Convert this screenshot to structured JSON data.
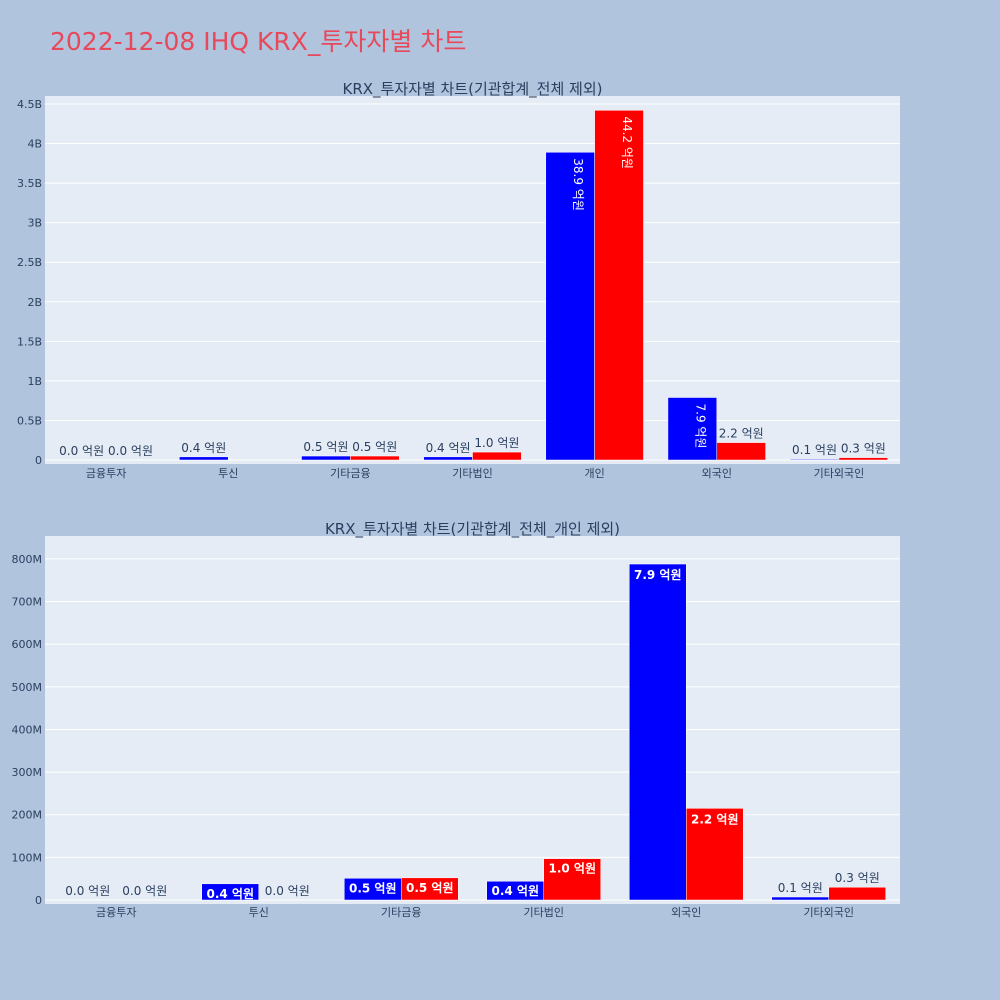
{
  "header": {
    "title": "2022-12-08 IHQ KRX_투자자별 차트"
  },
  "colors": {
    "buy": "#0000ff",
    "sell": "#ff0000",
    "plot_bg": "#e5ecf6",
    "page_bg": "#b0c4de",
    "title": "#e8495a"
  },
  "chart_data": [
    {
      "type": "bar",
      "title": "KRX_투자자별 차트(기관합계_전체 제외)",
      "categories": [
        "금융투자",
        "투신",
        "기타금융",
        "기타법인",
        "개인",
        "외국인",
        "기타외국인"
      ],
      "series": [
        {
          "values": [
            0,
            40000000,
            50000000,
            40000000,
            3890000000,
            790000000,
            10000000
          ],
          "labels": [
            "0.0 억원",
            "0.4 억원",
            "0.5 억원",
            "0.4 억원",
            "38.9 억원",
            "7.9 억원",
            "0.1 억원"
          ]
        },
        {
          "values": [
            0,
            0,
            50000000,
            100000000,
            4420000000,
            220000000,
            30000000
          ],
          "labels": [
            "0.0 억원",
            "",
            "0.5 억원",
            "1.0 억원",
            "44.2 억원",
            "2.2 억원",
            "0.3 억원"
          ]
        }
      ],
      "ylim": [
        0,
        4500000000
      ],
      "yticks": [
        0,
        500000000,
        1000000000,
        1500000000,
        2000000000,
        2500000000,
        3000000000,
        3500000000,
        4000000000,
        4500000000
      ],
      "ytick_labels": [
        "0",
        "0.5B",
        "1B",
        "1.5B",
        "2B",
        "2.5B",
        "3B",
        "3.5B",
        "4B",
        "4.5B"
      ]
    },
    {
      "type": "bar",
      "title": "KRX_투자자별 차트(기관합계_전체_개인 제외)",
      "categories": [
        "금융투자",
        "투신",
        "기타금융",
        "기타법인",
        "외국인",
        "기타외국인"
      ],
      "series": [
        {
          "values": [
            0,
            38000000,
            51000000,
            44000000,
            788000000,
            7000000
          ],
          "labels": [
            "0.0 억원",
            "0.4 억원",
            "0.5 억원",
            "0.4 억원",
            "7.9 억원",
            "0.1 억원"
          ]
        },
        {
          "values": [
            0,
            0,
            52000000,
            97000000,
            215000000,
            30000000
          ],
          "labels": [
            "0.0 억원",
            "0.0 억원",
            "0.5 억원",
            "1.0 억원",
            "2.2 억원",
            "0.3 억원"
          ]
        }
      ],
      "ylim": [
        0,
        835000000
      ],
      "yticks": [
        0,
        100000000,
        200000000,
        300000000,
        400000000,
        500000000,
        600000000,
        700000000,
        800000000
      ],
      "ytick_labels": [
        "0",
        "100M",
        "200M",
        "300M",
        "400M",
        "500M",
        "600M",
        "700M",
        "800M"
      ]
    }
  ]
}
